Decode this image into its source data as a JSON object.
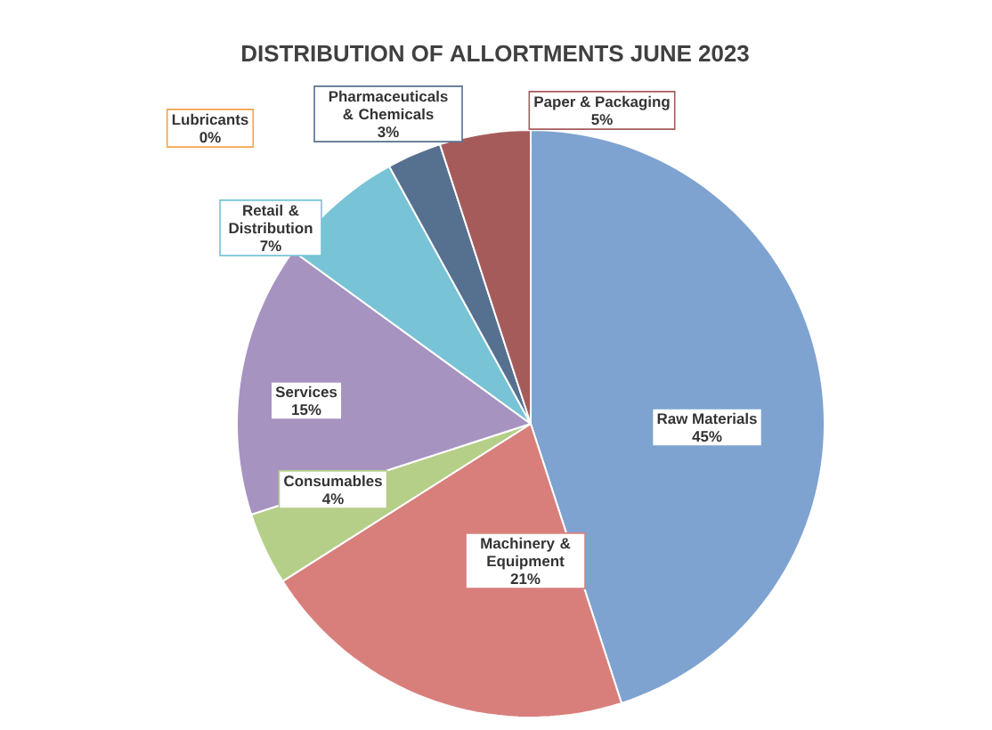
{
  "chart_data": {
    "type": "pie",
    "title": "DISTRIBUTION OF ALLORTMENTS JUNE 2023",
    "categories": [
      "Raw Materials",
      "Machinery & Equipment",
      "Consumables",
      "Services",
      "Retail & Distribution",
      "Lubricants",
      "Pharmaceuticals & Chemicals",
      "Paper & Packaging"
    ],
    "values": [
      45,
      21,
      4,
      15,
      7,
      0,
      3,
      5
    ],
    "value_labels": [
      "45%",
      "21%",
      "4%",
      "15%",
      "7%",
      "0%",
      "3%",
      "5%"
    ],
    "colors": [
      "#7fa3d0",
      "#d87f7c",
      "#b5cf88",
      "#a793c0",
      "#78c3d6",
      "#f5a44c",
      "#56708f",
      "#a65b5b"
    ]
  }
}
